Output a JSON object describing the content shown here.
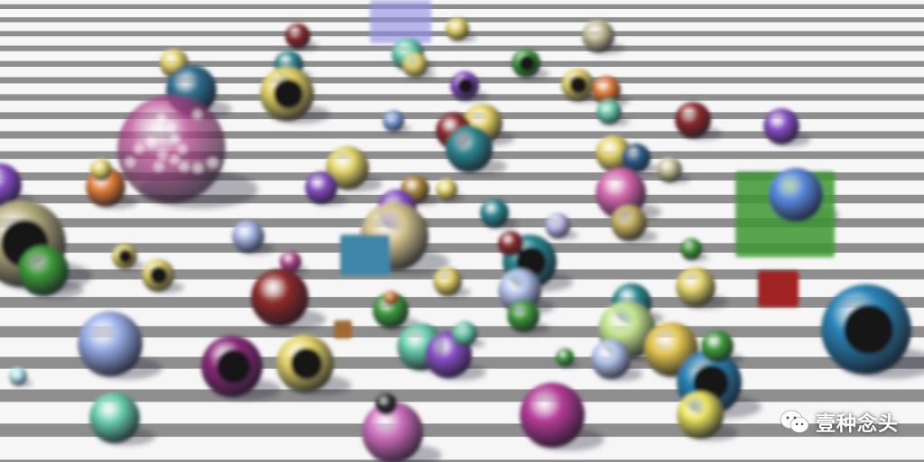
{
  "scene": {
    "description_free": true,
    "palette": {
      "floor_light": "#f6f6f6",
      "floor_shadow": "#8e8e8e",
      "yellow": "#e8d86a",
      "purple": "#8a4fc8",
      "magenta": "#b8458f",
      "teal": "#2b8a92",
      "blue": "#7fa4e0",
      "orange": "#e8823a",
      "green": "#3e9e3a",
      "red": "#8f2a2a",
      "mint": "#69d1b0"
    }
  },
  "watermark": {
    "icon": "wechat-icon",
    "text": "壹种念头"
  }
}
